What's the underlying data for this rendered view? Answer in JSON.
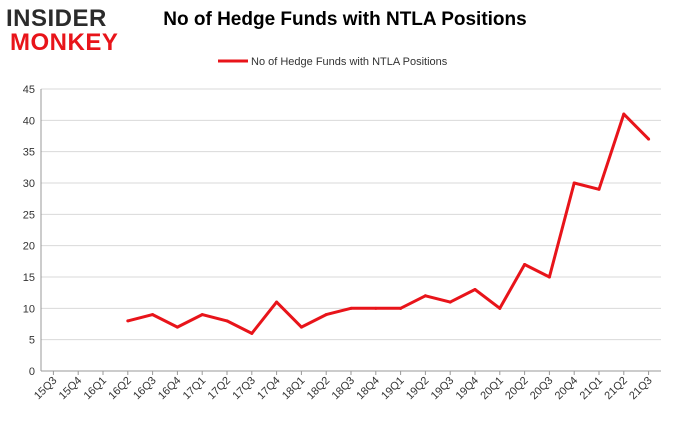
{
  "logo": {
    "line1": "INSIDER",
    "line2": "MONKEY"
  },
  "colors": {
    "series": "#e8141a",
    "grid": "#d9d9d9",
    "axis": "#999999",
    "logo_dark": "#2b2b2b",
    "logo_red": "#e8141a"
  },
  "chart_data": {
    "type": "line",
    "title": "No of Hedge Funds with NTLA Positions",
    "xlabel": "",
    "ylabel": "",
    "legend_position": "top-center",
    "grid": true,
    "ylim": [
      0,
      45
    ],
    "yticks": [
      0,
      5,
      10,
      15,
      20,
      25,
      30,
      35,
      40,
      45
    ],
    "categories": [
      "15Q3",
      "15Q4",
      "16Q1",
      "16Q2",
      "16Q3",
      "16Q4",
      "17Q1",
      "17Q2",
      "17Q3",
      "17Q4",
      "18Q1",
      "18Q2",
      "18Q3",
      "18Q4",
      "19Q1",
      "19Q2",
      "19Q3",
      "19Q4",
      "20Q1",
      "20Q2",
      "20Q3",
      "20Q4",
      "21Q1",
      "21Q2",
      "21Q3"
    ],
    "series": [
      {
        "name": "No of Hedge Funds with NTLA Positions",
        "values": [
          null,
          null,
          null,
          8,
          9,
          7,
          9,
          8,
          6,
          11,
          7,
          9,
          10,
          10,
          10,
          12,
          11,
          13,
          10,
          17,
          15,
          30,
          29,
          41,
          37
        ]
      }
    ]
  }
}
